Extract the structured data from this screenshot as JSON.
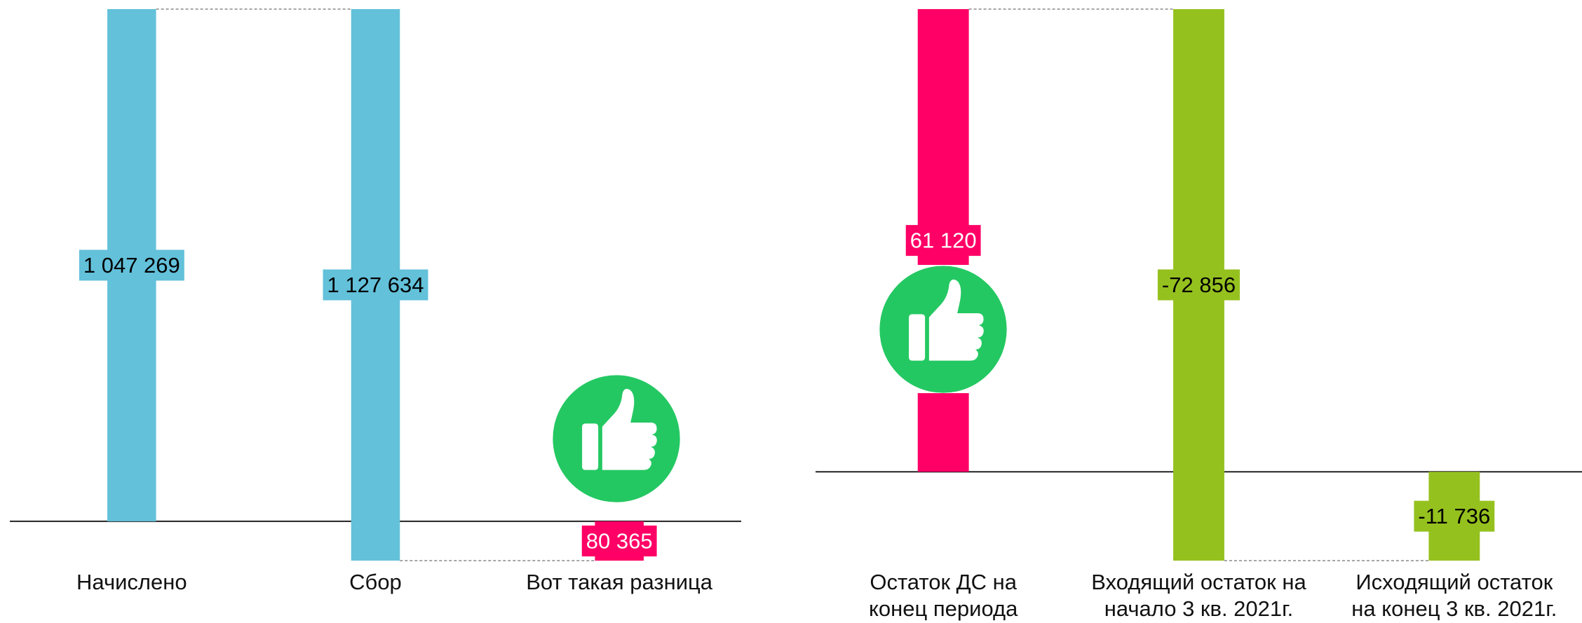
{
  "chart_data": [
    {
      "type": "waterfall",
      "categories": [
        "Начислено",
        "Сбор",
        "Вот такая разница"
      ],
      "values": [
        1047269,
        -1127634,
        80365
      ],
      "value_labels": [
        "1 047 269",
        "1 127 634",
        "80 365"
      ],
      "measure": [
        "absolute",
        "relative",
        "relative"
      ],
      "colors": [
        "#63c1da",
        "#63c1da",
        "#ff0066"
      ],
      "label_text_colors": [
        "#000000",
        "#000000",
        "#ffffff"
      ]
    },
    {
      "type": "waterfall",
      "categories": [
        "Остаток ДС на\nконец периода",
        "Входящий  остаток на\nначало 3 кв. 2021г.",
        "Исходящий остаток\nна конец 3 кв. 2021г."
      ],
      "values": [
        61120,
        -72856,
        -11736
      ],
      "value_labels": [
        "61 120",
        "-72 856",
        "-11 736"
      ],
      "measure": [
        "absolute",
        "relative",
        "absolute"
      ],
      "colors": [
        "#ff0066",
        "#95c11f",
        "#95c11f"
      ],
      "label_text_colors": [
        "#ffffff",
        "#000000",
        "#000000"
      ]
    }
  ]
}
